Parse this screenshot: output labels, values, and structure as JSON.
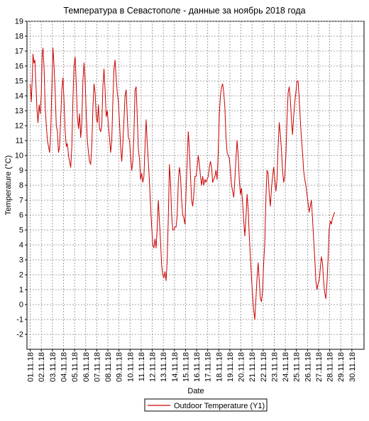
{
  "chart_data": {
    "type": "line",
    "title": "Температура в Севастополе - данные за ноябрь 2018 года",
    "xlabel": "Date",
    "ylabel": "Temperature (°C)",
    "ylim": [
      -3,
      19
    ],
    "yticks": [
      -2,
      -1,
      0,
      1,
      2,
      3,
      4,
      5,
      6,
      7,
      8,
      9,
      10,
      11,
      12,
      13,
      14,
      15,
      16,
      17,
      18,
      19
    ],
    "x_range_days": [
      0,
      30
    ],
    "x_ticks": [
      {
        "label": "01.11.18",
        "day": 0
      },
      {
        "label": "02.11.18",
        "day": 1
      },
      {
        "label": "03.11.18",
        "day": 2
      },
      {
        "label": "04.11.18",
        "day": 3
      },
      {
        "label": "05.11.18",
        "day": 4
      },
      {
        "label": "06.11.18",
        "day": 5
      },
      {
        "label": "07.11.18",
        "day": 6
      },
      {
        "label": "08.11.18",
        "day": 7
      },
      {
        "label": "09.11.18",
        "day": 8
      },
      {
        "label": "10.11.18",
        "day": 9
      },
      {
        "label": "11.11.18",
        "day": 10
      },
      {
        "label": "12.11.18",
        "day": 11
      },
      {
        "label": "13.11.18",
        "day": 12
      },
      {
        "label": "14.11.18",
        "day": 13
      },
      {
        "label": "15.11.18",
        "day": 14
      },
      {
        "label": "16.11.18",
        "day": 15
      },
      {
        "label": "17.11.18",
        "day": 16
      },
      {
        "label": "18.11.18",
        "day": 17
      },
      {
        "label": "19.11.18",
        "day": 18
      },
      {
        "label": "20.11.18",
        "day": 19
      },
      {
        "label": "21.11.18",
        "day": 20
      },
      {
        "label": "22.11.18",
        "day": 21
      },
      {
        "label": "23.11.18",
        "day": 22
      },
      {
        "label": "24.11.18",
        "day": 23
      },
      {
        "label": "25.11.18",
        "day": 24
      },
      {
        "label": "26.11.18",
        "day": 25
      },
      {
        "label": "27.11.18",
        "day": 26
      },
      {
        "label": "28.11.18",
        "day": 27
      },
      {
        "label": "29.11.18",
        "day": 28
      },
      {
        "label": "30.11.18",
        "day": 29
      }
    ],
    "series": [
      {
        "name": "Outdoor Temperature (Y1)",
        "color": "#cc0000",
        "points": [
          [
            0.0,
            14.8
          ],
          [
            0.1,
            13.6
          ],
          [
            0.18,
            15.2
          ],
          [
            0.25,
            16.8
          ],
          [
            0.33,
            16.2
          ],
          [
            0.42,
            16.4
          ],
          [
            0.5,
            15.0
          ],
          [
            0.6,
            13.2
          ],
          [
            0.7,
            12.2
          ],
          [
            0.8,
            13.4
          ],
          [
            0.9,
            12.8
          ],
          [
            1.0,
            14.2
          ],
          [
            1.08,
            16.8
          ],
          [
            1.15,
            17.2
          ],
          [
            1.25,
            15.8
          ],
          [
            1.35,
            13.2
          ],
          [
            1.45,
            12.0
          ],
          [
            1.55,
            11.0
          ],
          [
            1.65,
            10.6
          ],
          [
            1.75,
            10.2
          ],
          [
            1.85,
            11.6
          ],
          [
            1.95,
            14.6
          ],
          [
            2.05,
            17.2
          ],
          [
            2.15,
            16.0
          ],
          [
            2.25,
            14.2
          ],
          [
            2.35,
            12.0
          ],
          [
            2.45,
            11.6
          ],
          [
            2.55,
            10.2
          ],
          [
            2.65,
            10.6
          ],
          [
            2.75,
            12.6
          ],
          [
            2.85,
            14.4
          ],
          [
            2.95,
            15.2
          ],
          [
            3.05,
            13.6
          ],
          [
            3.15,
            11.6
          ],
          [
            3.25,
            10.6
          ],
          [
            3.35,
            10.8
          ],
          [
            3.45,
            10.0
          ],
          [
            3.55,
            9.6
          ],
          [
            3.65,
            9.2
          ],
          [
            3.75,
            10.6
          ],
          [
            3.85,
            13.8
          ],
          [
            3.95,
            16.0
          ],
          [
            4.05,
            16.6
          ],
          [
            4.15,
            14.8
          ],
          [
            4.25,
            12.6
          ],
          [
            4.35,
            11.8
          ],
          [
            4.45,
            12.8
          ],
          [
            4.55,
            11.2
          ],
          [
            4.65,
            12.2
          ],
          [
            4.75,
            15.0
          ],
          [
            4.85,
            16.2
          ],
          [
            4.95,
            15.0
          ],
          [
            5.05,
            12.8
          ],
          [
            5.15,
            11.0
          ],
          [
            5.25,
            10.2
          ],
          [
            5.35,
            9.6
          ],
          [
            5.45,
            9.4
          ],
          [
            5.55,
            10.6
          ],
          [
            5.65,
            13.2
          ],
          [
            5.75,
            14.8
          ],
          [
            5.85,
            14.2
          ],
          [
            5.95,
            12.6
          ],
          [
            6.05,
            12.2
          ],
          [
            6.15,
            13.4
          ],
          [
            6.25,
            11.8
          ],
          [
            6.35,
            11.6
          ],
          [
            6.45,
            12.0
          ],
          [
            6.55,
            14.6
          ],
          [
            6.65,
            15.8
          ],
          [
            6.75,
            14.4
          ],
          [
            6.85,
            12.6
          ],
          [
            6.95,
            13.0
          ],
          [
            7.05,
            12.0
          ],
          [
            7.15,
            11.2
          ],
          [
            7.25,
            10.2
          ],
          [
            7.35,
            11.0
          ],
          [
            7.45,
            13.6
          ],
          [
            7.55,
            15.8
          ],
          [
            7.65,
            16.4
          ],
          [
            7.75,
            15.2
          ],
          [
            7.85,
            14.2
          ],
          [
            7.95,
            13.6
          ],
          [
            8.05,
            12.2
          ],
          [
            8.15,
            10.6
          ],
          [
            8.25,
            9.6
          ],
          [
            8.35,
            10.8
          ],
          [
            8.45,
            12.4
          ],
          [
            8.55,
            14.0
          ],
          [
            8.65,
            14.4
          ],
          [
            8.75,
            12.6
          ],
          [
            8.85,
            11.2
          ],
          [
            8.95,
            11.0
          ],
          [
            9.05,
            10.0
          ],
          [
            9.15,
            9.0
          ],
          [
            9.25,
            9.6
          ],
          [
            9.35,
            11.4
          ],
          [
            9.45,
            14.4
          ],
          [
            9.55,
            14.6
          ],
          [
            9.65,
            12.6
          ],
          [
            9.75,
            10.4
          ],
          [
            9.85,
            9.8
          ],
          [
            9.95,
            8.4
          ],
          [
            10.05,
            8.8
          ],
          [
            10.15,
            8.2
          ],
          [
            10.25,
            8.6
          ],
          [
            10.35,
            10.6
          ],
          [
            10.45,
            12.4
          ],
          [
            10.55,
            10.8
          ],
          [
            10.65,
            9.6
          ],
          [
            10.75,
            8.2
          ],
          [
            10.85,
            6.6
          ],
          [
            10.95,
            5.2
          ],
          [
            11.05,
            4.0
          ],
          [
            11.15,
            3.8
          ],
          [
            11.25,
            4.4
          ],
          [
            11.35,
            3.8
          ],
          [
            11.45,
            5.2
          ],
          [
            11.55,
            7.0
          ],
          [
            11.65,
            5.6
          ],
          [
            11.75,
            4.2
          ],
          [
            11.85,
            2.6
          ],
          [
            11.95,
            2.0
          ],
          [
            12.05,
            1.8
          ],
          [
            12.15,
            2.2
          ],
          [
            12.25,
            1.6
          ],
          [
            12.35,
            3.0
          ],
          [
            12.45,
            5.8
          ],
          [
            12.55,
            9.4
          ],
          [
            12.65,
            8.2
          ],
          [
            12.75,
            6.0
          ],
          [
            12.85,
            5.0
          ],
          [
            12.95,
            5.0
          ],
          [
            13.05,
            5.2
          ],
          [
            13.15,
            5.2
          ],
          [
            13.25,
            6.0
          ],
          [
            13.35,
            8.2
          ],
          [
            13.45,
            9.2
          ],
          [
            13.55,
            8.6
          ],
          [
            13.65,
            7.0
          ],
          [
            13.75,
            6.0
          ],
          [
            13.85,
            5.8
          ],
          [
            13.95,
            5.4
          ],
          [
            14.05,
            7.6
          ],
          [
            14.15,
            9.6
          ],
          [
            14.25,
            11.6
          ],
          [
            14.35,
            10.4
          ],
          [
            14.45,
            8.6
          ],
          [
            14.55,
            7.0
          ],
          [
            14.65,
            6.6
          ],
          [
            14.75,
            7.4
          ],
          [
            14.85,
            8.6
          ],
          [
            14.95,
            8.6
          ],
          [
            15.05,
            9.2
          ],
          [
            15.15,
            10.0
          ],
          [
            15.25,
            9.4
          ],
          [
            15.35,
            8.6
          ],
          [
            15.45,
            8.0
          ],
          [
            15.55,
            8.6
          ],
          [
            15.65,
            8.0
          ],
          [
            15.75,
            8.4
          ],
          [
            15.85,
            8.2
          ],
          [
            15.95,
            8.4
          ],
          [
            16.05,
            8.6
          ],
          [
            16.15,
            9.2
          ],
          [
            16.25,
            9.6
          ],
          [
            16.35,
            9.2
          ],
          [
            16.45,
            8.2
          ],
          [
            16.55,
            8.4
          ],
          [
            16.65,
            8.6
          ],
          [
            16.75,
            9.0
          ],
          [
            16.85,
            8.4
          ],
          [
            16.95,
            10.2
          ],
          [
            17.05,
            12.8
          ],
          [
            17.15,
            14.0
          ],
          [
            17.25,
            14.6
          ],
          [
            17.35,
            14.8
          ],
          [
            17.45,
            14.2
          ],
          [
            17.55,
            13.2
          ],
          [
            17.65,
            11.2
          ],
          [
            17.75,
            10.2
          ],
          [
            17.85,
            10.0
          ],
          [
            17.95,
            9.8
          ],
          [
            18.05,
            9.0
          ],
          [
            18.15,
            8.0
          ],
          [
            18.25,
            7.6
          ],
          [
            18.35,
            7.2
          ],
          [
            18.45,
            8.4
          ],
          [
            18.55,
            9.8
          ],
          [
            18.65,
            11.0
          ],
          [
            18.75,
            10.0
          ],
          [
            18.85,
            8.4
          ],
          [
            18.95,
            7.4
          ],
          [
            19.05,
            7.8
          ],
          [
            19.15,
            6.8
          ],
          [
            19.25,
            5.6
          ],
          [
            19.35,
            4.6
          ],
          [
            19.45,
            5.8
          ],
          [
            19.55,
            7.4
          ],
          [
            19.65,
            6.4
          ],
          [
            19.75,
            4.6
          ],
          [
            19.85,
            3.2
          ],
          [
            19.95,
            1.8
          ],
          [
            20.05,
            0.6
          ],
          [
            20.15,
            -0.4
          ],
          [
            20.25,
            -1.0
          ],
          [
            20.35,
            0.4
          ],
          [
            20.45,
            1.8
          ],
          [
            20.55,
            2.8
          ],
          [
            20.65,
            1.6
          ],
          [
            20.75,
            0.4
          ],
          [
            20.85,
            0.2
          ],
          [
            20.95,
            1.0
          ],
          [
            21.05,
            2.8
          ],
          [
            21.15,
            4.2
          ],
          [
            21.25,
            7.2
          ],
          [
            21.35,
            9.0
          ],
          [
            21.45,
            8.8
          ],
          [
            21.55,
            7.4
          ],
          [
            21.65,
            6.6
          ],
          [
            21.75,
            7.8
          ],
          [
            21.85,
            8.6
          ],
          [
            21.95,
            9.2
          ],
          [
            22.05,
            8.4
          ],
          [
            22.15,
            7.6
          ],
          [
            22.25,
            8.4
          ],
          [
            22.35,
            10.6
          ],
          [
            22.45,
            12.2
          ],
          [
            22.55,
            11.4
          ],
          [
            22.65,
            10.4
          ],
          [
            22.75,
            9.0
          ],
          [
            22.85,
            8.2
          ],
          [
            22.95,
            8.6
          ],
          [
            23.05,
            10.0
          ],
          [
            23.15,
            12.4
          ],
          [
            23.25,
            14.2
          ],
          [
            23.35,
            14.6
          ],
          [
            23.45,
            13.8
          ],
          [
            23.55,
            12.4
          ],
          [
            23.65,
            11.4
          ],
          [
            23.75,
            12.6
          ],
          [
            23.85,
            13.6
          ],
          [
            23.95,
            14.2
          ],
          [
            24.05,
            15.0
          ],
          [
            24.15,
            15.0
          ],
          [
            24.25,
            13.8
          ],
          [
            24.35,
            12.4
          ],
          [
            24.45,
            11.2
          ],
          [
            24.55,
            10.2
          ],
          [
            24.65,
            9.0
          ],
          [
            24.75,
            8.4
          ],
          [
            24.85,
            8.0
          ],
          [
            24.95,
            7.4
          ],
          [
            25.05,
            6.8
          ],
          [
            25.15,
            6.2
          ],
          [
            25.25,
            6.6
          ],
          [
            25.35,
            7.0
          ],
          [
            25.45,
            5.8
          ],
          [
            25.55,
            4.4
          ],
          [
            25.65,
            3.2
          ],
          [
            25.75,
            1.6
          ],
          [
            25.85,
            1.0
          ],
          [
            25.95,
            1.4
          ],
          [
            26.05,
            1.6
          ],
          [
            26.15,
            2.4
          ],
          [
            26.25,
            3.2
          ],
          [
            26.35,
            2.8
          ],
          [
            26.45,
            1.6
          ],
          [
            26.55,
            0.8
          ],
          [
            26.65,
            0.4
          ],
          [
            26.75,
            1.4
          ],
          [
            26.85,
            3.0
          ],
          [
            26.95,
            5.0
          ],
          [
            27.05,
            5.6
          ],
          [
            27.15,
            5.4
          ],
          [
            27.25,
            5.8
          ],
          [
            27.35,
            6.0
          ],
          [
            27.45,
            6.2
          ]
        ]
      }
    ],
    "legend": {
      "label": "Outdoor Temperature (Y1)",
      "position": "bottom-center"
    },
    "grid": true
  }
}
